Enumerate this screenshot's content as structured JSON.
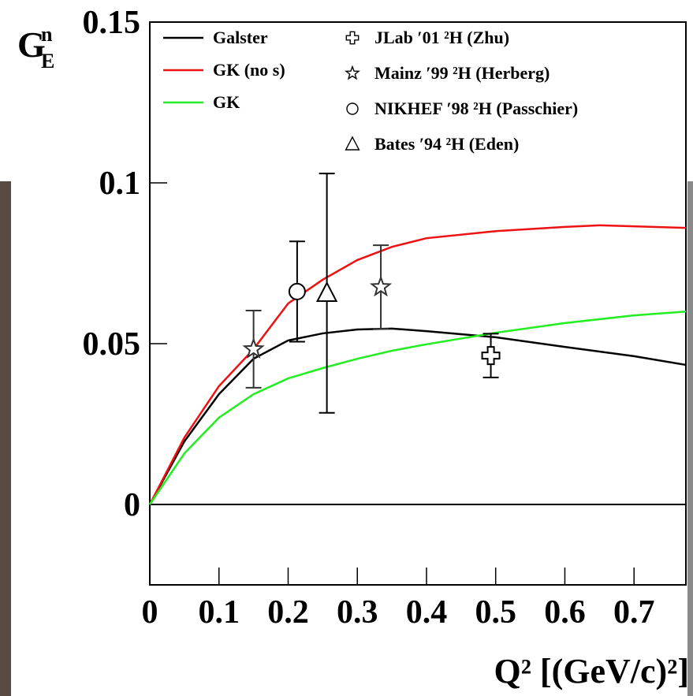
{
  "chart_data": {
    "type": "line",
    "y_label": "G",
    "y_label_sup": "n",
    "y_label_sub": "E",
    "x_label": "Q² [(GeV/c)²]",
    "xlim": [
      0,
      0.775
    ],
    "ylim": [
      -0.025,
      0.15
    ],
    "xticks": [
      0,
      0.1,
      0.2,
      0.3,
      0.4,
      0.5,
      0.6,
      0.7
    ],
    "yticks": [
      0,
      0.05,
      0.1,
      0.15
    ],
    "zero_line": true,
    "series": [
      {
        "name": "Galster",
        "color": "#000000",
        "x": [
          0,
          0.05,
          0.1,
          0.15,
          0.2,
          0.25,
          0.3,
          0.35,
          0.4,
          0.5,
          0.6,
          0.7,
          0.775
        ],
        "values": [
          0,
          0.0196,
          0.0343,
          0.0453,
          0.051,
          0.0532,
          0.0544,
          0.0547,
          0.0539,
          0.052,
          0.049,
          0.0461,
          0.0434
        ]
      },
      {
        "name": "GK (no s)",
        "color": "#ee1111",
        "x": [
          0,
          0.05,
          0.1,
          0.15,
          0.2,
          0.25,
          0.3,
          0.35,
          0.4,
          0.5,
          0.6,
          0.65,
          0.7,
          0.775
        ],
        "values": [
          0,
          0.0208,
          0.0368,
          0.0483,
          0.0625,
          0.0699,
          0.076,
          0.0801,
          0.0828,
          0.085,
          0.0863,
          0.0868,
          0.0865,
          0.086
        ]
      },
      {
        "name": "GK",
        "color": "#22ee22",
        "x": [
          0,
          0.05,
          0.1,
          0.15,
          0.2,
          0.25,
          0.3,
          0.35,
          0.4,
          0.5,
          0.6,
          0.7,
          0.775
        ],
        "values": [
          0,
          0.0159,
          0.027,
          0.0343,
          0.0392,
          0.0424,
          0.0453,
          0.0478,
          0.0498,
          0.0534,
          0.0564,
          0.0588,
          0.06
        ]
      }
    ],
    "points": [
      {
        "name": "JLab ′01 ²H (Zhu)",
        "marker": "cross",
        "color": "#000000",
        "x": [
          0.493
        ],
        "values": [
          0.0463
        ],
        "errors": [
          0.0068
        ]
      },
      {
        "name": "Mainz ′99 ²H (Herberg)",
        "marker": "star",
        "color": "#333333",
        "x": [
          0.15,
          0.334
        ],
        "values": [
          0.0483,
          0.0676
        ],
        "errors": [
          0.012,
          0.013
        ]
      },
      {
        "name": "NIKHEF ′98 ²H (Passchier)",
        "marker": "circle",
        "color": "#000000",
        "x": [
          0.213
        ],
        "values": [
          0.0662
        ],
        "errors": [
          0.0156
        ]
      },
      {
        "name": "Bates ′94 ²H (Eden)",
        "marker": "triangle",
        "color": "#000000",
        "x": [
          0.256
        ],
        "values": [
          0.0657
        ],
        "errors": [
          0.0372
        ]
      }
    ]
  }
}
